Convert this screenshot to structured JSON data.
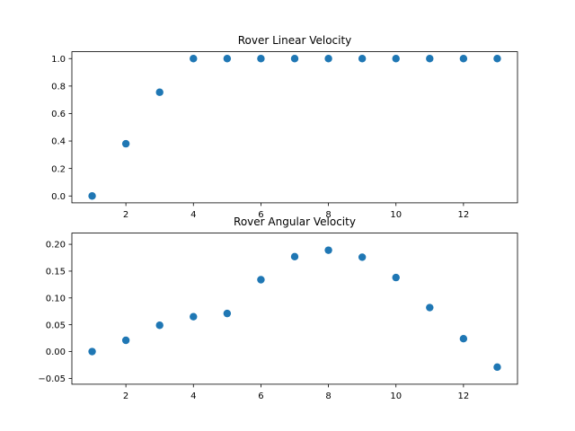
{
  "chart_data": [
    {
      "type": "scatter",
      "title": "Rover Linear Velocity",
      "xlabel": "",
      "ylabel": "",
      "x": [
        1,
        2,
        3,
        4,
        5,
        6,
        7,
        8,
        9,
        10,
        11,
        12,
        13
      ],
      "y": [
        0.0,
        0.38,
        0.755,
        1.0,
        1.0,
        1.0,
        1.0,
        1.0,
        1.0,
        1.0,
        1.0,
        1.0,
        1.0
      ],
      "xlim": [
        0.4,
        13.6
      ],
      "ylim": [
        -0.05,
        1.05
      ],
      "xticks": [
        2,
        4,
        6,
        8,
        10,
        12
      ],
      "xtick_labels": [
        "2",
        "4",
        "6",
        "8",
        "10",
        "12"
      ],
      "yticks": [
        0.0,
        0.2,
        0.4,
        0.6,
        0.8,
        1.0
      ],
      "ytick_labels": [
        "0.0",
        "0.2",
        "0.4",
        "0.6",
        "0.8",
        "1.0"
      ],
      "color": "#1f77b4",
      "grid": false
    },
    {
      "type": "scatter",
      "title": "Rover Angular Velocity",
      "xlabel": "",
      "ylabel": "",
      "x": [
        1,
        2,
        3,
        4,
        5,
        6,
        7,
        8,
        9,
        10,
        11,
        12,
        13
      ],
      "y": [
        0.0,
        0.021,
        0.049,
        0.065,
        0.071,
        0.134,
        0.177,
        0.189,
        0.176,
        0.138,
        0.082,
        0.024,
        -0.029
      ],
      "xlim": [
        0.4,
        13.6
      ],
      "ylim": [
        -0.0609,
        0.2209
      ],
      "xticks": [
        2,
        4,
        6,
        8,
        10,
        12
      ],
      "xtick_labels": [
        "2",
        "4",
        "6",
        "8",
        "10",
        "12"
      ],
      "yticks": [
        -0.05,
        0.0,
        0.05,
        0.1,
        0.15,
        0.2
      ],
      "ytick_labels": [
        "−0.05",
        "0.00",
        "0.05",
        "0.10",
        "0.15",
        "0.20"
      ],
      "color": "#1f77b4",
      "grid": false
    }
  ]
}
